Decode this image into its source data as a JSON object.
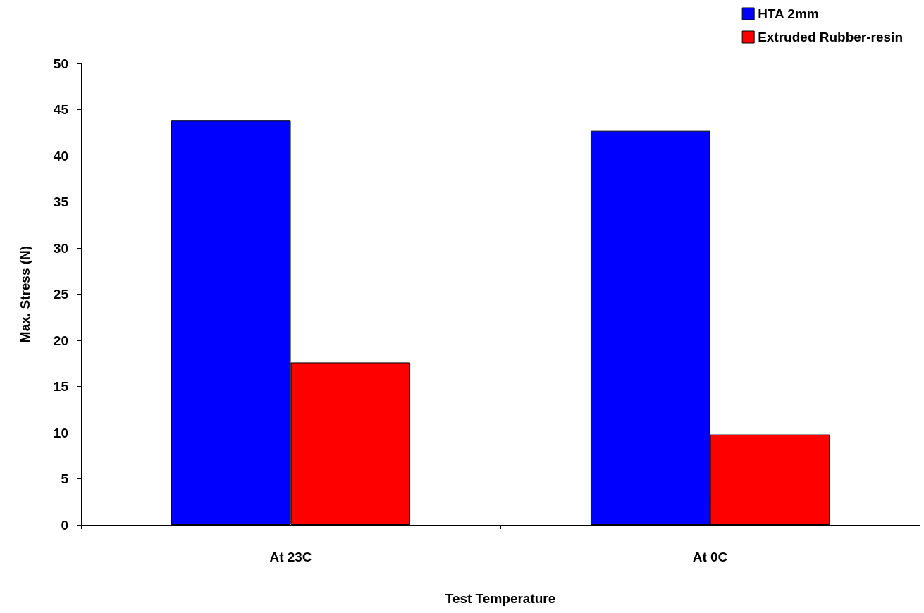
{
  "chart_data": {
    "type": "bar",
    "xlabel": "Test Temperature",
    "ylabel": "Max. Stress (N)",
    "categories": [
      "At 23C",
      "At 0C"
    ],
    "series": [
      {
        "name": "HTA 2mm",
        "color": "#0000ff",
        "values": [
          43.8,
          42.7
        ]
      },
      {
        "name": "Extruded Rubber-resin",
        "color": "#ff0000",
        "values": [
          17.6,
          9.8
        ]
      }
    ],
    "ylim": [
      0,
      50
    ],
    "yticks": [
      0,
      5,
      10,
      15,
      20,
      25,
      30,
      35,
      40,
      45,
      50
    ],
    "grid": false,
    "legend": "top right"
  }
}
